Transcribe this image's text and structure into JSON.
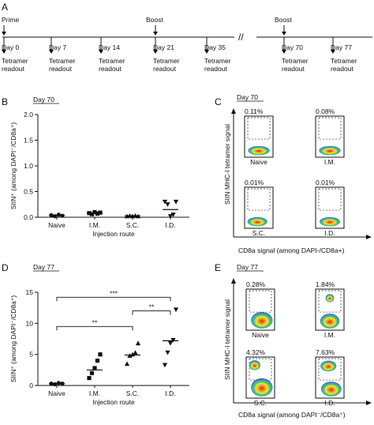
{
  "panel_a": {
    "letter": "A",
    "top_labels": [
      {
        "text": "Prime"
      },
      {
        "text": "Boost"
      },
      {
        "text": "Boost"
      }
    ],
    "timepoints": [
      {
        "day": "Day 0",
        "readout": "Tetramer readout"
      },
      {
        "day": "Day 7",
        "readout": "Tetramer readout"
      },
      {
        "day": "Day 14",
        "readout": "Tetramer readout"
      },
      {
        "day": "Day 21",
        "readout": "Tetramer readout"
      },
      {
        "day": "Day 35",
        "readout": "Tetramer readout"
      },
      {
        "day": "Day 70",
        "readout": "Tetramer readout"
      },
      {
        "day": "Day 77",
        "readout": "Tetramer readout"
      }
    ],
    "break_mark": "//"
  },
  "panel_b": {
    "letter": "B",
    "day_label": "Day 70"
  },
  "panel_c": {
    "letter": "C",
    "day_label": "Day 70",
    "ylabel": "SIIN MHC-I tetramer signal",
    "xlabel": "CD8a signal (among DAPI-/CD8a+)",
    "plots": [
      {
        "pct": "0.11%",
        "label": "Naive"
      },
      {
        "pct": "0.08%",
        "label": "I.M."
      },
      {
        "pct": "0.01%",
        "label": "S.C."
      },
      {
        "pct": "0.01%",
        "label": "I.D."
      }
    ]
  },
  "panel_d": {
    "letter": "D",
    "day_label": "Day 77"
  },
  "panel_e": {
    "letter": "E",
    "day_label": "Day 77",
    "ylabel": "SIIN MHC-I tetramer signal",
    "xlabel": "CD8a signal (among DAPI⁻/CD8a⁺)",
    "plots": [
      {
        "pct": "0.28%",
        "label": "Naive"
      },
      {
        "pct": "1.84%",
        "label": "I.M."
      },
      {
        "pct": "4.32%",
        "label": "S.C."
      },
      {
        "pct": "7.63%",
        "label": "I.D."
      }
    ]
  },
  "chart_data": [
    {
      "panel": "B",
      "type": "scatter",
      "title": "Day 70",
      "xlabel": "Injection route",
      "ylabel": "SIIN⁺ (among DAPI⁻/CD8a⁺)",
      "categories": [
        "Naive",
        "I.M.",
        "S.C.",
        "I.D."
      ],
      "ylim": [
        0,
        2.0
      ],
      "yticks": [
        "0.0",
        "0.5",
        "1.0",
        "1.5",
        "2.0"
      ],
      "markers": [
        "circle",
        "square",
        "triangle-up",
        "triangle-down"
      ],
      "points": [
        [
          0.04,
          0.02,
          0.05,
          0.03
        ],
        [
          0.08,
          0.06,
          0.1,
          0.07,
          0.09
        ],
        [
          0.02,
          0.03,
          0.02,
          0.03,
          0.02
        ],
        [
          0.3,
          0.25,
          0.02,
          0.05,
          0.3
        ]
      ],
      "means": [
        0.04,
        0.08,
        0.03,
        0.15
      ]
    },
    {
      "panel": "D",
      "type": "scatter",
      "title": "Day 77",
      "xlabel": "Injection route",
      "ylabel": "SIIN⁺ (among DAPI⁻/CD8a⁺)",
      "categories": [
        "Naive",
        "I.M.",
        "S.C.",
        "I.D."
      ],
      "ylim": [
        0,
        15
      ],
      "yticks": [
        "0",
        "5",
        "10",
        "15"
      ],
      "markers": [
        "circle",
        "square",
        "triangle-up",
        "triangle-down"
      ],
      "points": [
        [
          0.3,
          0.2,
          0.4,
          0.3
        ],
        [
          1.2,
          2.0,
          2.8,
          4.0,
          5.0
        ],
        [
          3.5,
          4.8,
          5.0,
          5.3,
          6.8
        ],
        [
          3.3,
          5.3,
          6.8,
          7.3,
          12.2
        ]
      ],
      "means": [
        0.3,
        2.5,
        4.9,
        7.2
      ],
      "significance": [
        {
          "from": "Naive",
          "to": "S.C.",
          "label": "**"
        },
        {
          "from": "Naive",
          "to": "I.D.",
          "label": "***"
        },
        {
          "from": "S.C.",
          "to": "I.D.",
          "label": "**"
        }
      ]
    }
  ]
}
